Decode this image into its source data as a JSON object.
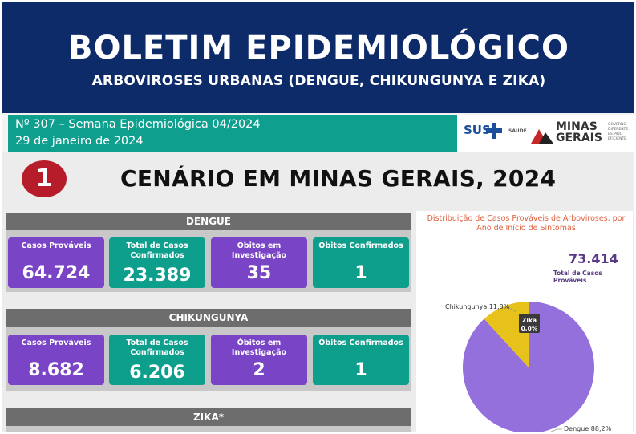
{
  "header": {
    "title": "BOLETIM EPIDEMIOLÓGICO",
    "subtitle": "ARBOVIROSES URBANAS (DENGUE, CHIKUNGUNYA E ZIKA)"
  },
  "info": {
    "edition": "Nº 307 – Semana Epidemiológica 04/2024",
    "date": "29 de janeiro de 2024"
  },
  "logos": {
    "sus": "SUS",
    "saude": "SAÚDE",
    "state_name_1": "MINAS",
    "state_name_2": "GERAIS",
    "state_sub": "GOVERNO DIFERENTE. ESTADO EFICIENTE."
  },
  "scenario": {
    "number": "1",
    "title": "CENÁRIO EM MINAS GERAIS, 2024"
  },
  "sections": {
    "dengue": {
      "title": "DENGUE",
      "cards": [
        {
          "label": "Casos Prováveis",
          "value": "64.724"
        },
        {
          "label": "Total de Casos Confirmados",
          "value": "23.389"
        },
        {
          "label": "Óbitos em Investigação",
          "value": "35"
        },
        {
          "label": "Óbitos Confirmados",
          "value": "1"
        }
      ]
    },
    "chikungunya": {
      "title": "CHIKUNGUNYA",
      "cards": [
        {
          "label": "Casos Prováveis",
          "value": "8.682"
        },
        {
          "label": "Total de Casos Confirmados",
          "value": "6.206"
        },
        {
          "label": "Óbitos em Investigação",
          "value": "2"
        },
        {
          "label": "Óbitos Confirmados",
          "value": "1"
        }
      ]
    },
    "zika": {
      "title": "ZIKA*"
    }
  },
  "colors": {
    "header_bg": "#0d2a69",
    "teal": "#0e9e8c",
    "purple": "#7a44c6",
    "badge_red": "#b71c2a",
    "pie_dengue": "#9370db",
    "pie_chikungunya": "#e6c21a"
  },
  "chart_data": {
    "type": "pie",
    "title": "Distribuição de Casos Prováveis de Arboviroses, por Ano de Início de Sintomas",
    "total_value": "73.414",
    "total_label": "Total de Casos Prováveis",
    "slices": [
      {
        "name": "Dengue",
        "value": 88.2,
        "label": "Dengue 88,2%"
      },
      {
        "name": "Chikungunya",
        "value": 11.8,
        "label": "Chikungunya 11,8%"
      },
      {
        "name": "Zika",
        "value": 0.0,
        "label_name": "Zika",
        "label_pct": "0,0%"
      }
    ]
  }
}
